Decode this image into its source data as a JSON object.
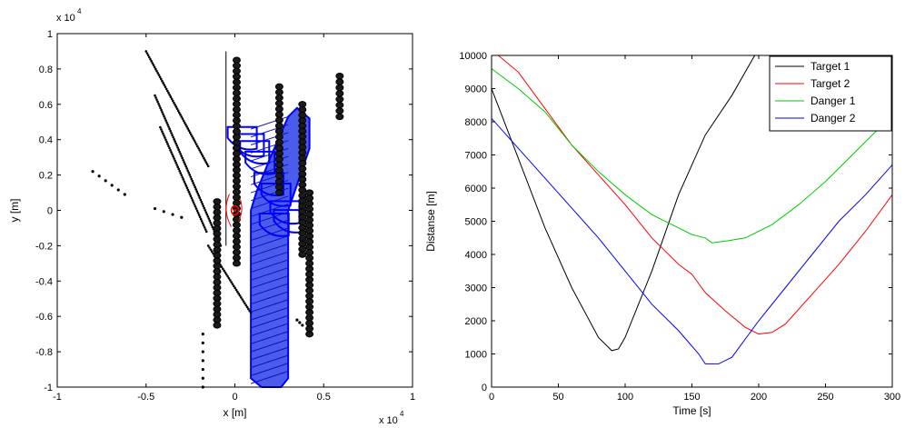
{
  "chart_data": [
    {
      "type": "scatter",
      "title": "",
      "xlabel": "x [m]",
      "ylabel": "y [m]",
      "x_exponent_label": "x 10",
      "x_exponent_power": "4",
      "y_exponent_label": "x 10",
      "y_exponent_power": "4",
      "xlim": [
        -10000,
        10000
      ],
      "ylim": [
        -10000,
        10000
      ],
      "xticks": [
        -10000,
        -5000,
        0,
        5000,
        10000
      ],
      "xtick_labels": [
        "-1",
        "-0.5",
        "0",
        "0.5",
        "1"
      ],
      "yticks": [
        -10000,
        -8000,
        -6000,
        -4000,
        -2000,
        0,
        2000,
        4000,
        6000,
        8000,
        10000
      ],
      "ytick_labels": [
        "-1",
        "-0.8",
        "-0.6",
        "-0.4",
        "-0.2",
        "0",
        "0.2",
        "0.4",
        "0.6",
        "0.8",
        "1"
      ],
      "grid": false,
      "colors": {
        "tracks": "#000000",
        "danger_zone": "#0000ff",
        "own_ship": "#ff0000"
      },
      "black_tracks": [
        {
          "points": [
            [
              -5000,
              9000
            ],
            [
              -1500,
              2500
            ]
          ],
          "style": "dots"
        },
        {
          "points": [
            [
              -4500,
              6500
            ],
            [
              -800,
              -2000
            ]
          ],
          "style": "dots"
        },
        {
          "points": [
            [
              -4200,
              4700
            ],
            [
              -1600,
              -1200
            ]
          ],
          "style": "dots"
        },
        {
          "points": [
            [
              -1500,
              -2000
            ],
            [
              900,
              -5800
            ]
          ],
          "style": "dots"
        },
        {
          "points": [
            [
              -8000,
              2200
            ],
            [
              -6200,
              900
            ]
          ],
          "style": "sparse"
        },
        {
          "points": [
            [
              -4500,
              100
            ],
            [
              -3000,
              -400
            ]
          ],
          "style": "sparse"
        },
        {
          "points": [
            [
              -1800,
              -7000
            ],
            [
              -1800,
              -10000
            ]
          ],
          "style": "sparse"
        },
        {
          "points": [
            [
              -1000,
              500
            ],
            [
              -1000,
              -6500
            ]
          ],
          "style": "circles"
        },
        {
          "points": [
            [
              100,
              8500
            ],
            [
              100,
              -3000
            ]
          ],
          "style": "circles"
        },
        {
          "points": [
            [
              2500,
              7000
            ],
            [
              2500,
              1000
            ]
          ],
          "style": "circles"
        },
        {
          "points": [
            [
              3800,
              6000
            ],
            [
              3800,
              -2500
            ]
          ],
          "style": "circles"
        },
        {
          "points": [
            [
              4200,
              1000
            ],
            [
              4200,
              -7000
            ]
          ],
          "style": "circles"
        },
        {
          "points": [
            [
              5900,
              7600
            ],
            [
              5900,
              5300
            ]
          ],
          "style": "circles"
        },
        {
          "points": [
            [
              -500,
              9000
            ],
            [
              -500,
              -2000
            ]
          ],
          "style": "line"
        },
        {
          "points": [
            [
              3500,
              -6200
            ],
            [
              3800,
              -6500
            ]
          ],
          "style": "sparse"
        }
      ],
      "danger_zone_outline": [
        [
          900,
          0
        ],
        [
          900,
          -9500
        ],
        [
          1500,
          -10000
        ],
        [
          2600,
          -10000
        ],
        [
          3000,
          -9500
        ],
        [
          3000,
          0
        ],
        [
          4200,
          3500
        ],
        [
          4200,
          5200
        ],
        [
          3500,
          5800
        ],
        [
          3000,
          5300
        ],
        [
          2000,
          3000
        ],
        [
          1200,
          1000
        ]
      ],
      "danger_arcs": [
        [
          -200,
          4000
        ],
        [
          200,
          3600
        ],
        [
          500,
          3200
        ],
        [
          800,
          2600
        ],
        [
          1300,
          1400
        ],
        [
          1700,
          800
        ],
        [
          2200,
          -200
        ],
        [
          2400,
          -700
        ],
        [
          1600,
          -900
        ]
      ],
      "own_ship": [
        0,
        0
      ]
    },
    {
      "type": "line",
      "title": "",
      "xlabel": "Time [s]",
      "ylabel": "Distanse [m]",
      "xlim": [
        0,
        300
      ],
      "ylim": [
        0,
        10000
      ],
      "xticks": [
        0,
        50,
        100,
        150,
        200,
        250,
        300
      ],
      "yticks": [
        0,
        1000,
        2000,
        3000,
        4000,
        5000,
        6000,
        7000,
        8000,
        9000,
        10000
      ],
      "grid": false,
      "legend_position": "top-right",
      "series": [
        {
          "name": "Target 1",
          "color": "#000000",
          "x": [
            0,
            20,
            40,
            60,
            80,
            90,
            95,
            100,
            120,
            140,
            160,
            180,
            197
          ],
          "y": [
            9000,
            6900,
            4800,
            3000,
            1500,
            1100,
            1150,
            1500,
            3500,
            5800,
            7600,
            8800,
            10000
          ]
        },
        {
          "name": "Target 2",
          "color": "#ff0000",
          "x": [
            0,
            5,
            20,
            40,
            60,
            80,
            100,
            120,
            140,
            150,
            160,
            175,
            190,
            200,
            210,
            220,
            240,
            260,
            280,
            300
          ],
          "y": [
            10000,
            10000,
            9500,
            8400,
            7300,
            6400,
            5500,
            4500,
            3700,
            3400,
            2850,
            2300,
            1800,
            1600,
            1650,
            1900,
            2800,
            3700,
            4700,
            5800
          ]
        },
        {
          "name": "Danger 1",
          "color": "#00cc00",
          "x": [
            0,
            20,
            40,
            60,
            80,
            100,
            120,
            140,
            150,
            160,
            165,
            175,
            190,
            210,
            230,
            250,
            270,
            290,
            300
          ],
          "y": [
            9600,
            9000,
            8300,
            7300,
            6500,
            5800,
            5200,
            4800,
            4600,
            4500,
            4350,
            4400,
            4500,
            4900,
            5500,
            6200,
            7000,
            7800,
            8400
          ]
        },
        {
          "name": "Danger 2",
          "color": "#0000ff",
          "x": [
            0,
            20,
            40,
            60,
            80,
            100,
            120,
            140,
            155,
            160,
            170,
            180,
            200,
            220,
            240,
            260,
            280,
            300
          ],
          "y": [
            8100,
            7200,
            6300,
            5400,
            4500,
            3500,
            2500,
            1700,
            1000,
            700,
            700,
            900,
            2000,
            3000,
            4000,
            5000,
            5800,
            6700
          ]
        }
      ]
    }
  ]
}
